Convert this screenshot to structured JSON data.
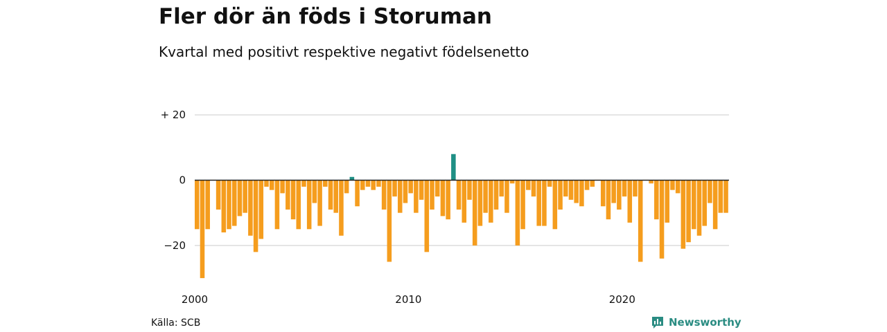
{
  "header": {
    "title": "Fler dör än föds i Storuman",
    "subtitle": "Kvartal med positivt respektive negativt födelsenetto"
  },
  "footer": {
    "source": "Källa: SCB",
    "brand": "Newsworthy",
    "brand_icon": "bar-chart-icon"
  },
  "colors": {
    "negative": "#f59d1e",
    "positive": "#1f8f85",
    "grid": "#dcdcdc",
    "zero_line": "#222222",
    "brand": "#2a8c82"
  },
  "chart_data": {
    "type": "bar",
    "x_start": "2000 Q1",
    "period": "quarter",
    "values": [
      -15,
      -30,
      -15,
      0,
      -9,
      -16,
      -15,
      -14,
      -11,
      -10,
      -17,
      -22,
      -18,
      -2,
      -3,
      -15,
      -4,
      -9,
      -12,
      -15,
      -2,
      -15,
      -7,
      -14,
      -2,
      -9,
      -10,
      -17,
      -4,
      1,
      -8,
      -3,
      -2,
      -3,
      -2,
      -9,
      -25,
      -5,
      -10,
      -7,
      -4,
      -10,
      -6,
      -22,
      -9,
      -5,
      -11,
      -12,
      8,
      -9,
      -13,
      -6,
      -20,
      -14,
      -10,
      -13,
      -9,
      -5,
      -10,
      -1,
      -20,
      -15,
      -3,
      -5,
      -14,
      -14,
      -2,
      -15,
      -9,
      -5,
      -6,
      -7,
      -8,
      -3,
      -2,
      0,
      -8,
      -12,
      -7,
      -9,
      -5,
      -13,
      -5,
      -25,
      0,
      -1,
      -12,
      -24,
      -13,
      -3,
      -4,
      -21,
      -19,
      -15,
      -17,
      -14,
      -7,
      -15,
      -10,
      -10
    ],
    "ylim": [
      -30,
      20
    ],
    "yticks": [
      {
        "value": 20,
        "label": "+ 20"
      },
      {
        "value": 0,
        "label": "0"
      },
      {
        "value": -20,
        "label": "−20"
      }
    ],
    "xticks": [
      {
        "index": 0,
        "label": "2000"
      },
      {
        "index": 40,
        "label": "2010"
      },
      {
        "index": 80,
        "label": "2020"
      }
    ],
    "grid": true,
    "legend": "none"
  }
}
